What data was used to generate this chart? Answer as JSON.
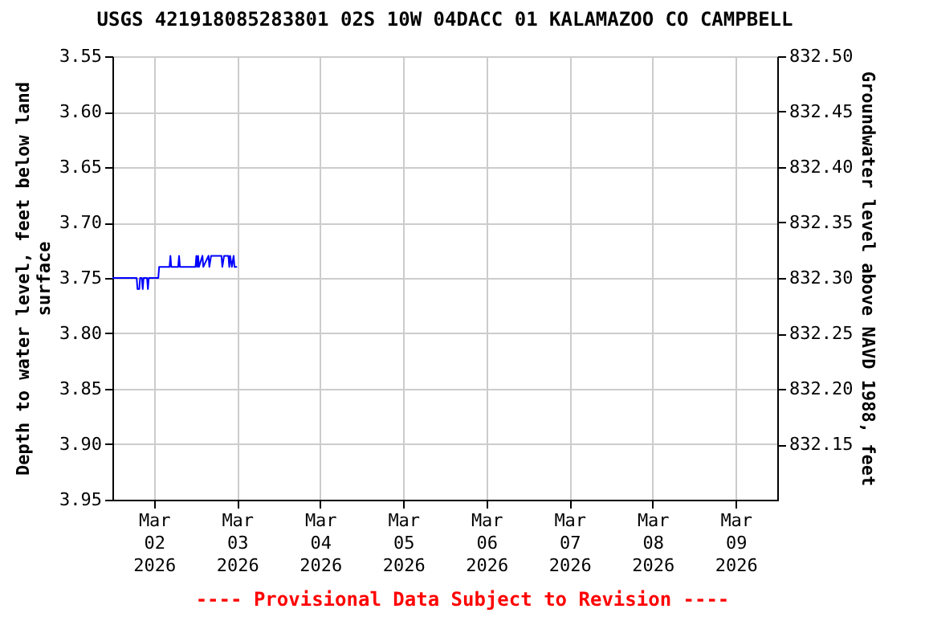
{
  "chart_data": {
    "type": "line",
    "title": "USGS 421918085283801 02S 10W 04DACC 01 KALAMAZOO CO CAMPBELL",
    "ylabel": "Depth to water level, feet below land surface",
    "y2label": "Groundwater level above NAVD 1988, feet",
    "annotations": [
      "---- Provisional Data Subject to Revision ----"
    ],
    "xlim": [
      "2026-03-01T12:00",
      "2026-03-09T12:00"
    ],
    "xticks": [
      {
        "value": "2026-03-02",
        "label": "Mar 02 2026"
      },
      {
        "value": "2026-03-03",
        "label": "Mar 03 2026"
      },
      {
        "value": "2026-03-04",
        "label": "Mar 04 2026"
      },
      {
        "value": "2026-03-05",
        "label": "Mar 05 2026"
      },
      {
        "value": "2026-03-06",
        "label": "Mar 06 2026"
      },
      {
        "value": "2026-03-07",
        "label": "Mar 07 2026"
      },
      {
        "value": "2026-03-08",
        "label": "Mar 08 2026"
      },
      {
        "value": "2026-03-09",
        "label": "Mar 09 2026"
      }
    ],
    "ylim": [
      3.95,
      3.55
    ],
    "yticks": [
      {
        "value": 3.55,
        "label": "3.55"
      },
      {
        "value": 3.6,
        "label": "3.60"
      },
      {
        "value": 3.65,
        "label": "3.65"
      },
      {
        "value": 3.7,
        "label": "3.70"
      },
      {
        "value": 3.75,
        "label": "3.75"
      },
      {
        "value": 3.8,
        "label": "3.80"
      },
      {
        "value": 3.85,
        "label": "3.85"
      },
      {
        "value": 3.9,
        "label": "3.90"
      },
      {
        "value": 3.95,
        "label": "3.95"
      }
    ],
    "y2lim": [
      832.1,
      832.5
    ],
    "y2ticks": [
      {
        "value": 832.15,
        "label": "832.15"
      },
      {
        "value": 832.2,
        "label": "832.20"
      },
      {
        "value": 832.25,
        "label": "832.25"
      },
      {
        "value": 832.3,
        "label": "832.30"
      },
      {
        "value": 832.35,
        "label": "832.35"
      },
      {
        "value": 832.4,
        "label": "832.40"
      },
      {
        "value": 832.45,
        "label": "832.45"
      },
      {
        "value": 832.5,
        "label": "832.50"
      }
    ],
    "grid": true,
    "series": [
      {
        "color": "#0000ff",
        "x": [
          "2026-03-01T12:00",
          "2026-03-01T19:00",
          "2026-03-01T19:15",
          "2026-03-01T19:45",
          "2026-03-01T20:00",
          "2026-03-01T20:30",
          "2026-03-01T20:45",
          "2026-03-01T21:00",
          "2026-03-01T22:00",
          "2026-03-01T22:15",
          "2026-03-01T22:30",
          "2026-03-02T01:15",
          "2026-03-02T01:30",
          "2026-03-02T04:30",
          "2026-03-02T04:45",
          "2026-03-02T05:00",
          "2026-03-02T07:00",
          "2026-03-02T07:15",
          "2026-03-02T07:30",
          "2026-03-02T12:00",
          "2026-03-02T12:15",
          "2026-03-02T12:30",
          "2026-03-02T12:45",
          "2026-03-02T13:00",
          "2026-03-02T14:00",
          "2026-03-02T14:15",
          "2026-03-02T15:45",
          "2026-03-02T16:00",
          "2026-03-02T16:30",
          "2026-03-02T19:30",
          "2026-03-02T19:45",
          "2026-03-02T20:15",
          "2026-03-02T21:30",
          "2026-03-02T21:45",
          "2026-03-02T22:00",
          "2026-03-02T22:30",
          "2026-03-02T23:00",
          "2026-03-02T23:15",
          "2026-03-03T00:00"
        ],
        "values": [
          3.75,
          3.75,
          3.76,
          3.76,
          3.75,
          3.75,
          3.76,
          3.75,
          3.75,
          3.76,
          3.75,
          3.75,
          3.74,
          3.74,
          3.73,
          3.74,
          3.74,
          3.73,
          3.74,
          3.74,
          3.73,
          3.74,
          3.73,
          3.74,
          3.73,
          3.74,
          3.73,
          3.74,
          3.73,
          3.73,
          3.74,
          3.73,
          3.73,
          3.74,
          3.73,
          3.74,
          3.73,
          3.74,
          3.74
        ]
      }
    ]
  }
}
